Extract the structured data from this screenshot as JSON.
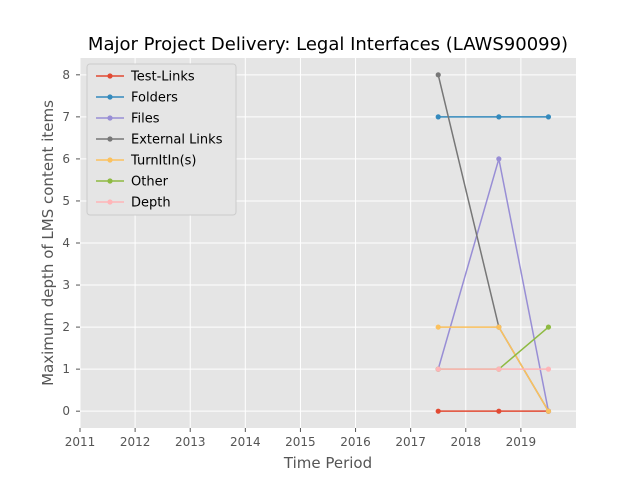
{
  "chart_data": {
    "type": "line",
    "title": "Major Project Delivery: Legal Interfaces (LAWS90099)",
    "xlabel": "Time Period",
    "ylabel": "Maximum depth of LMS content items",
    "xlim": [
      2011,
      2020
    ],
    "ylim": [
      -0.4,
      8.4
    ],
    "xticks": [
      "2011",
      "2012",
      "2013",
      "2014",
      "2015",
      "2016",
      "2017",
      "2018",
      "2019"
    ],
    "yticks": [
      "0",
      "1",
      "2",
      "3",
      "4",
      "5",
      "6",
      "7",
      "8"
    ],
    "grid": true,
    "legend_position": "top-left",
    "x": [
      2017.5,
      2018.6,
      2019.5
    ],
    "series": [
      {
        "name": "Test-Links",
        "color": "#e24a33",
        "values": [
          0,
          0,
          0
        ]
      },
      {
        "name": "Folders",
        "color": "#348abd",
        "values": [
          7,
          7,
          7
        ]
      },
      {
        "name": "Files",
        "color": "#988ed5",
        "values": [
          1,
          6,
          0
        ]
      },
      {
        "name": "External Links",
        "color": "#777777",
        "values": [
          8,
          2,
          0
        ]
      },
      {
        "name": "TurnItIn(s)",
        "color": "#fbc15e",
        "values": [
          2,
          2,
          0
        ]
      },
      {
        "name": "Other",
        "color": "#8eba42",
        "values": [
          1,
          1,
          2
        ]
      },
      {
        "name": "Depth",
        "color": "#ffb5b8",
        "values": [
          1,
          1,
          1
        ]
      }
    ]
  }
}
